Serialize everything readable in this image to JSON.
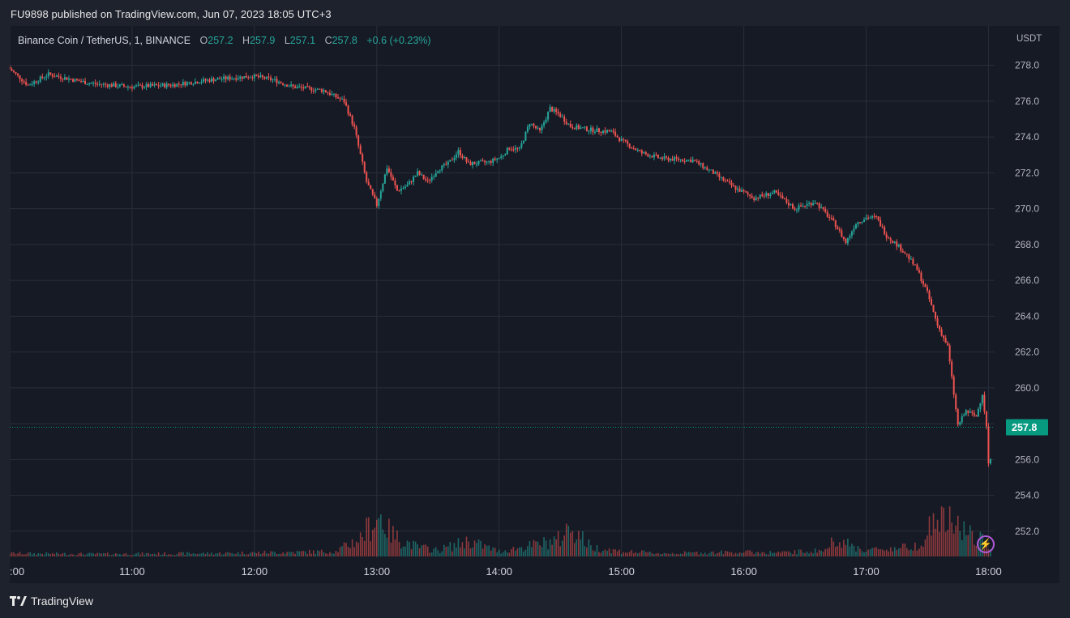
{
  "header": {
    "published": "FU9898 published on TradingView.com, Jun 07, 2023 18:05 UTC+3"
  },
  "legend": {
    "symbol": "Binance Coin / TetherUS, 1, BINANCE",
    "o_label": "O",
    "o": "257.2",
    "h_label": "H",
    "h": "257.9",
    "l_label": "L",
    "l": "257.1",
    "c_label": "C",
    "c": "257.8",
    "change": "+0.6 (+0.23%)"
  },
  "footer": {
    "logo_text": "TradingView"
  },
  "colors": {
    "up": "#26a69a",
    "down": "#ef5350",
    "grid": "#2a2e39",
    "text": "#b2b5be",
    "price_tag": "#089981"
  },
  "chart_data": {
    "type": "candlestick",
    "currency_label": "USDT",
    "last_price_label": "257.8",
    "last_price": 257.8,
    "ylim": [
      250.5,
      280.2
    ],
    "y_ticks": [
      "278.0",
      "276.0",
      "274.0",
      "272.0",
      "270.0",
      "268.0",
      "266.0",
      "264.0",
      "262.0",
      "260.0",
      "258.0",
      "256.0",
      "254.0",
      "252.0"
    ],
    "y_tick_values": [
      278,
      276,
      274,
      272,
      270,
      268,
      266,
      264,
      262,
      260,
      258,
      256,
      254,
      252
    ],
    "x_ticks": [
      ":00",
      "11:00",
      "12:00",
      "13:00",
      "14:00",
      "15:00",
      "16:00",
      "17:00",
      "18:00"
    ],
    "x_tick_minutes": [
      600,
      660,
      720,
      780,
      840,
      900,
      960,
      1020,
      1080
    ],
    "xlim_minutes": [
      600,
      1083
    ],
    "price_path": [
      [
        600,
        277.9
      ],
      [
        610,
        276.9
      ],
      [
        620,
        277.5
      ],
      [
        640,
        277.0
      ],
      [
        660,
        276.8
      ],
      [
        680,
        276.9
      ],
      [
        700,
        277.2
      ],
      [
        720,
        277.4
      ],
      [
        730,
        277.2
      ],
      [
        740,
        276.8
      ],
      [
        755,
        276.6
      ],
      [
        765,
        276.0
      ],
      [
        770,
        274.5
      ],
      [
        776,
        271.5
      ],
      [
        781,
        270.2
      ],
      [
        786,
        272.3
      ],
      [
        791,
        271.0
      ],
      [
        796,
        271.3
      ],
      [
        801,
        272.0
      ],
      [
        806,
        271.5
      ],
      [
        811,
        272.2
      ],
      [
        816,
        272.5
      ],
      [
        821,
        273.2
      ],
      [
        826,
        272.5
      ],
      [
        836,
        272.6
      ],
      [
        842,
        272.9
      ],
      [
        846,
        273.4
      ],
      [
        851,
        273.3
      ],
      [
        856,
        274.8
      ],
      [
        861,
        274.3
      ],
      [
        866,
        275.6
      ],
      [
        871,
        275.2
      ],
      [
        876,
        274.6
      ],
      [
        886,
        274.4
      ],
      [
        896,
        274.3
      ],
      [
        901,
        273.8
      ],
      [
        911,
        273.1
      ],
      [
        921,
        272.8
      ],
      [
        936,
        272.7
      ],
      [
        946,
        272.0
      ],
      [
        956,
        271.2
      ],
      [
        966,
        270.6
      ],
      [
        976,
        270.9
      ],
      [
        986,
        270.0
      ],
      [
        996,
        270.4
      ],
      [
        1006,
        269.1
      ],
      [
        1011,
        268.1
      ],
      [
        1016,
        269.2
      ],
      [
        1021,
        269.5
      ],
      [
        1026,
        269.5
      ],
      [
        1031,
        268.5
      ],
      [
        1036,
        268.0
      ],
      [
        1041,
        267.4
      ],
      [
        1046,
        266.6
      ],
      [
        1051,
        265.3
      ],
      [
        1056,
        263.5
      ],
      [
        1061,
        262.3
      ],
      [
        1066,
        257.9
      ],
      [
        1070,
        258.7
      ],
      [
        1075,
        258.4
      ],
      [
        1078,
        259.7
      ],
      [
        1080,
        257.8
      ],
      [
        1081,
        255.8
      ],
      [
        1085,
        256.2
      ]
    ],
    "volume": [
      [
        600,
        0.05
      ],
      [
        640,
        0.04
      ],
      [
        700,
        0.05
      ],
      [
        760,
        0.08
      ],
      [
        772,
        0.3
      ],
      [
        778,
        0.55
      ],
      [
        782,
        0.65
      ],
      [
        786,
        0.4
      ],
      [
        790,
        0.3
      ],
      [
        800,
        0.15
      ],
      [
        810,
        0.1
      ],
      [
        825,
        0.25
      ],
      [
        840,
        0.08
      ],
      [
        860,
        0.2
      ],
      [
        870,
        0.28
      ],
      [
        875,
        0.5
      ],
      [
        885,
        0.15
      ],
      [
        900,
        0.08
      ],
      [
        920,
        0.05
      ],
      [
        940,
        0.06
      ],
      [
        960,
        0.07
      ],
      [
        980,
        0.06
      ],
      [
        1000,
        0.1
      ],
      [
        1004,
        0.25
      ],
      [
        1006,
        0.35
      ],
      [
        1010,
        0.2
      ],
      [
        1020,
        0.1
      ],
      [
        1040,
        0.15
      ],
      [
        1046,
        0.2
      ],
      [
        1052,
        0.5
      ],
      [
        1055,
        0.6
      ],
      [
        1060,
        0.55
      ],
      [
        1064,
        0.5
      ],
      [
        1068,
        0.45
      ],
      [
        1072,
        0.3
      ],
      [
        1077,
        0.25
      ],
      [
        1080,
        0.22
      ],
      [
        1083,
        0.15
      ]
    ]
  }
}
